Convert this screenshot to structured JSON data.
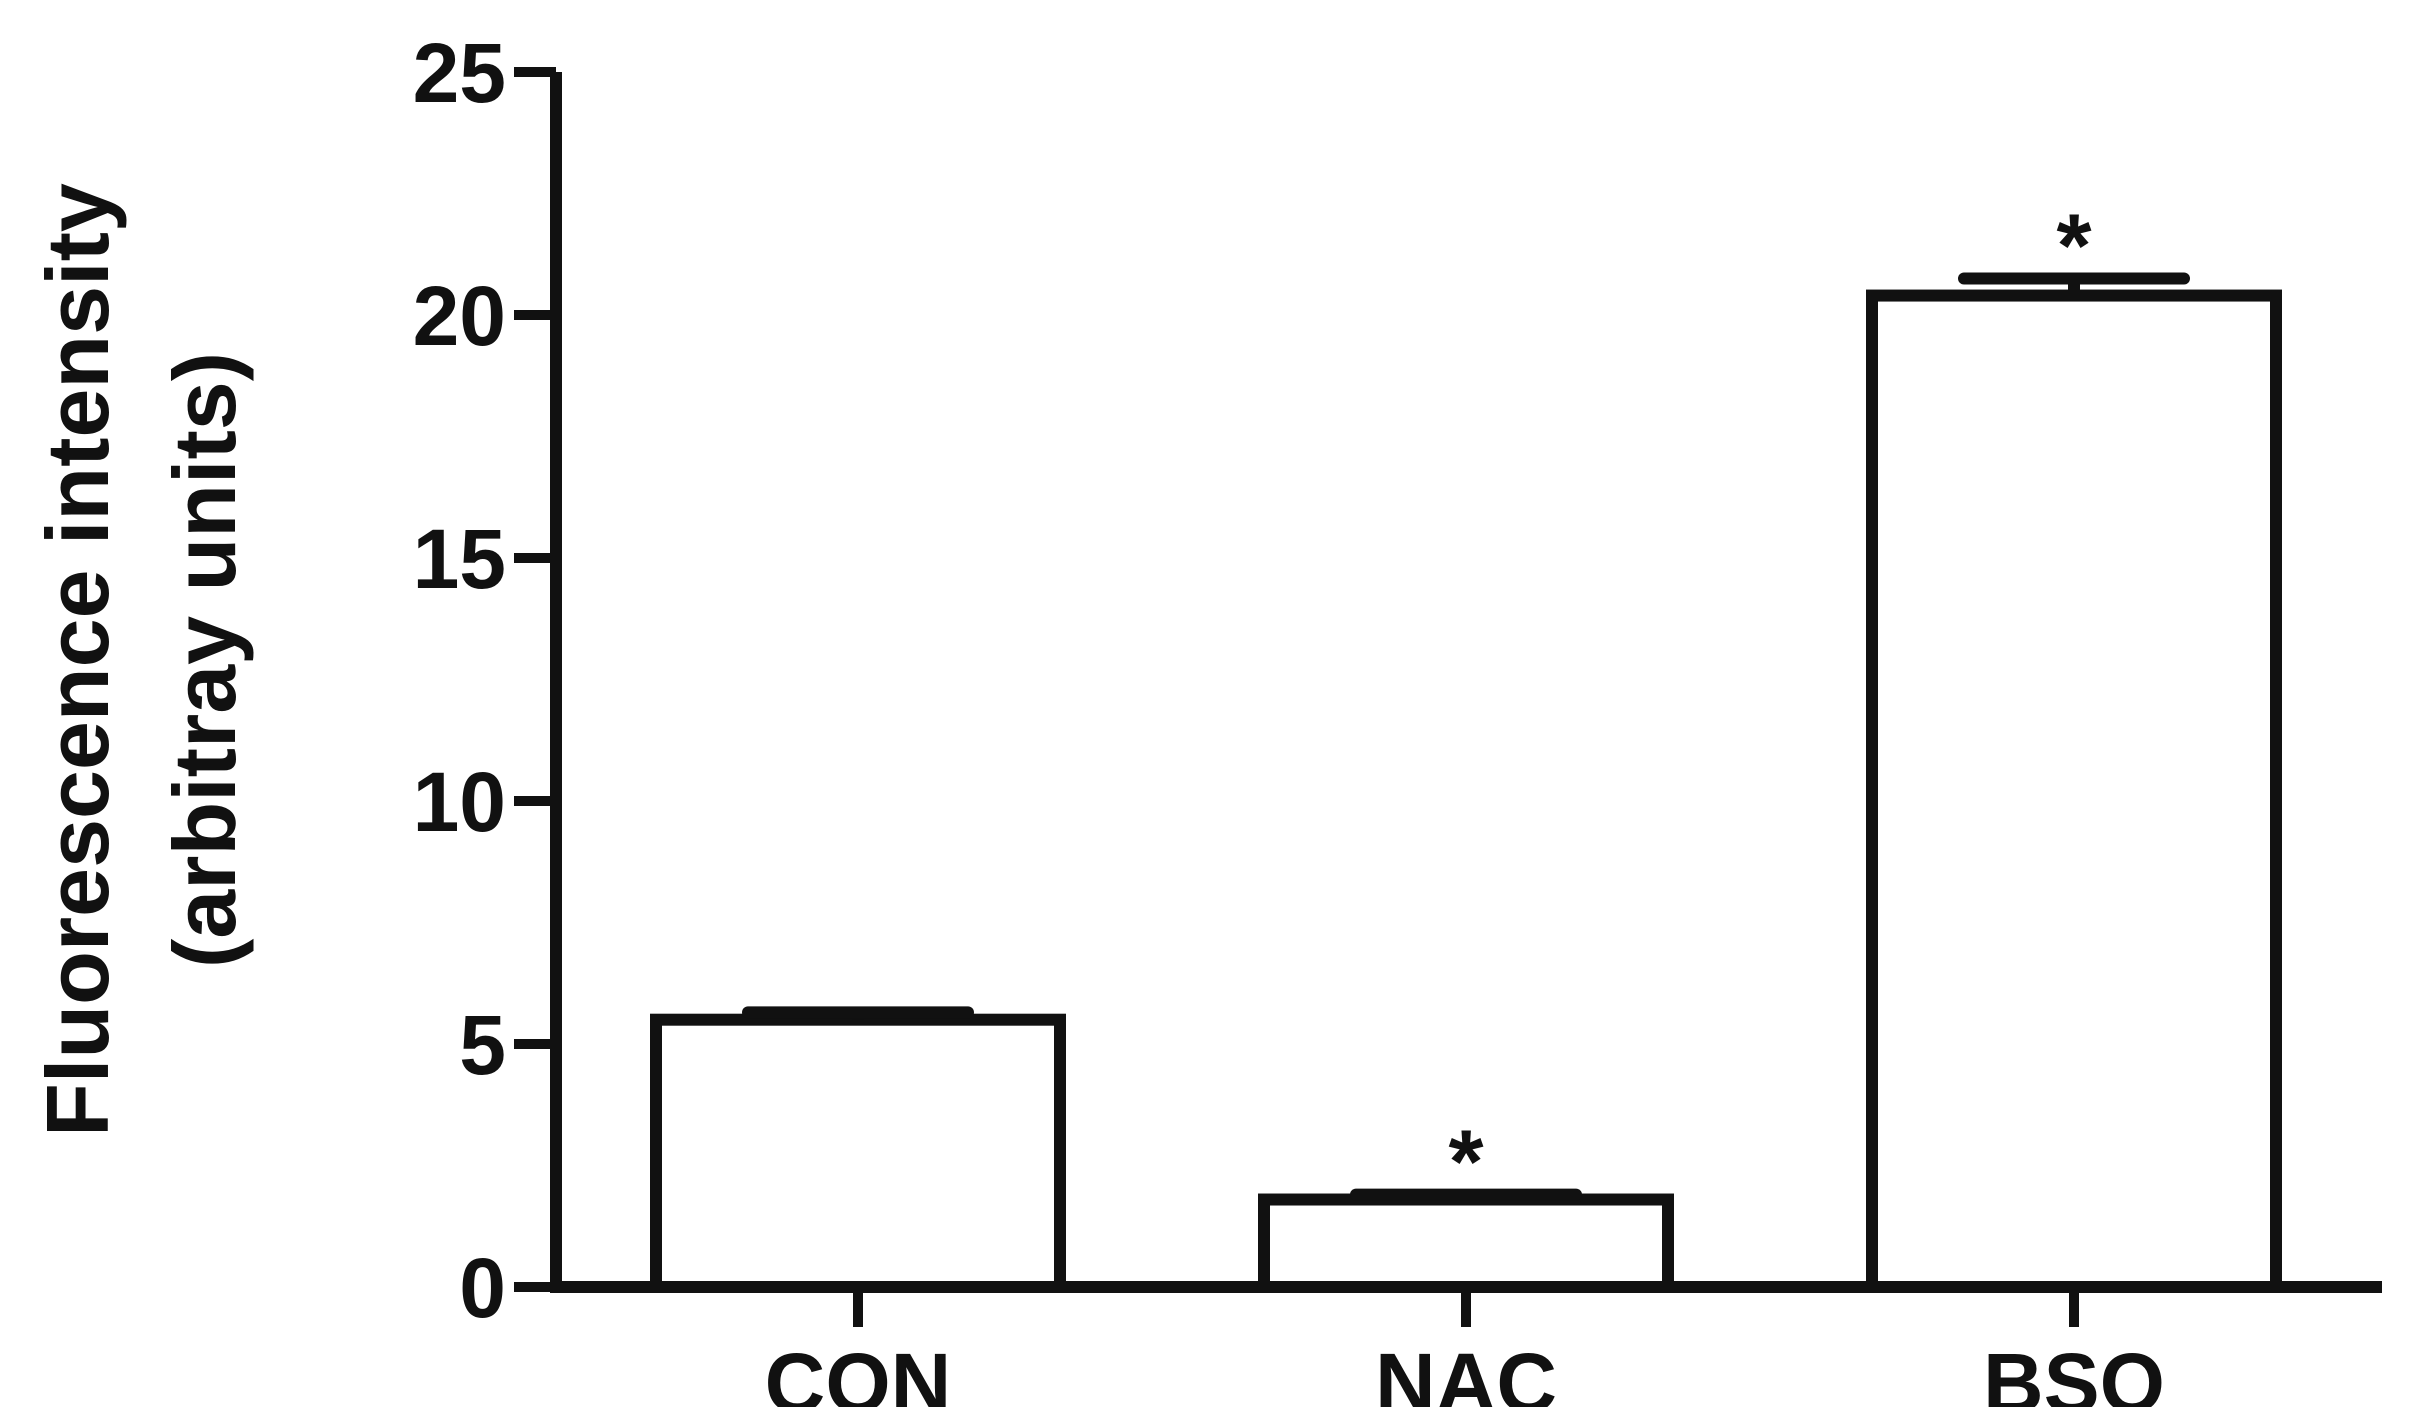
{
  "chart_data": {
    "type": "bar",
    "categories": [
      "CON",
      "NAC",
      "BSO"
    ],
    "values": [
      5.5,
      1.8,
      20.4
    ],
    "error_upper": [
      0.15,
      0.1,
      0.35
    ],
    "annotations": [
      "",
      "*",
      "*"
    ],
    "ylabel_line1": "Fluorescence intensity",
    "ylabel_line2": "(arbitray units)",
    "xlabel": "",
    "title": "",
    "ylim": [
      0,
      25
    ],
    "yticks": [
      0,
      5,
      10,
      15,
      20,
      25
    ],
    "grid": false,
    "legend": "none",
    "colors": {
      "bar_fill": "#ffffff",
      "stroke": "#111111"
    }
  }
}
